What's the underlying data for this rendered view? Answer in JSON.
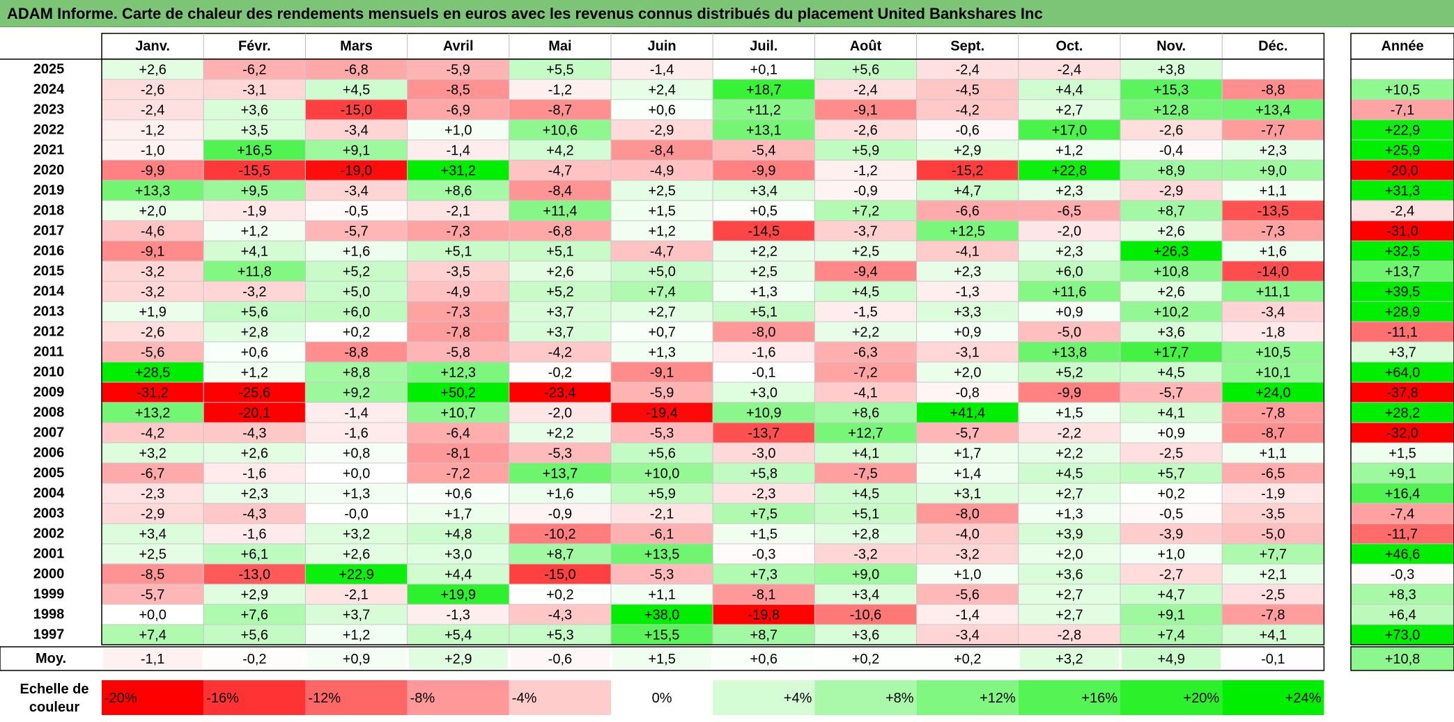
{
  "title": "ADAM Informe. Carte de chaleur des rendements mensuels en euros avec les revenus connus distribués du placement United Bankshares Inc",
  "chart_data": {
    "type": "heatmap",
    "columns": [
      "Janv.",
      "Févr.",
      "Mars",
      "Avril",
      "Mai",
      "Juin",
      "Juil.",
      "Août",
      "Sept.",
      "Oct.",
      "Nov.",
      "Déc."
    ],
    "year_header": "Année",
    "rows": [
      {
        "year": "2025",
        "months": [
          "+2,6",
          "-6,2",
          "-6,8",
          "-5,9",
          "+5,5",
          "-1,4",
          "+0,1",
          "+5,6",
          "-2,4",
          "-2,4",
          "+3,8",
          ""
        ],
        "annual": ""
      },
      {
        "year": "2024",
        "months": [
          "-2,6",
          "-3,1",
          "+4,5",
          "-8,5",
          "-1,2",
          "+2,4",
          "+18,7",
          "-2,4",
          "-4,5",
          "+4,4",
          "+15,3",
          "-8,8"
        ],
        "annual": "+10,5"
      },
      {
        "year": "2023",
        "months": [
          "-2,4",
          "+3,6",
          "-15,0",
          "-6,9",
          "-8,7",
          "+0,6",
          "+11,2",
          "-9,1",
          "-4,2",
          "+2,7",
          "+12,8",
          "+13,4"
        ],
        "annual": "-7,1"
      },
      {
        "year": "2022",
        "months": [
          "-1,2",
          "+3,5",
          "-3,4",
          "+1,0",
          "+10,6",
          "-2,9",
          "+13,1",
          "-2,6",
          "-0,6",
          "+17,0",
          "-2,6",
          "-7,7"
        ],
        "annual": "+22,9"
      },
      {
        "year": "2021",
        "months": [
          "-1,0",
          "+16,5",
          "+9,1",
          "-1,4",
          "+4,2",
          "-8,4",
          "-5,4",
          "+5,9",
          "+2,9",
          "+1,2",
          "-0,4",
          "+2,3"
        ],
        "annual": "+25,9"
      },
      {
        "year": "2020",
        "months": [
          "-9,9",
          "-15,5",
          "-19,0",
          "+31,2",
          "-4,7",
          "-4,9",
          "-9,9",
          "-1,2",
          "-15,2",
          "+22,8",
          "+8,9",
          "+9,0"
        ],
        "annual": "-20,0"
      },
      {
        "year": "2019",
        "months": [
          "+13,3",
          "+9,5",
          "-3,4",
          "+8,6",
          "-8,4",
          "+2,5",
          "+3,4",
          "-0,9",
          "+4,7",
          "+2,3",
          "-2,9",
          "+1,1"
        ],
        "annual": "+31,3"
      },
      {
        "year": "2018",
        "months": [
          "+2,0",
          "-1,9",
          "-0,5",
          "-2,1",
          "+11,4",
          "+1,5",
          "+0,5",
          "+7,2",
          "-6,6",
          "-6,5",
          "+8,7",
          "-13,5"
        ],
        "annual": "-2,4"
      },
      {
        "year": "2017",
        "months": [
          "-4,6",
          "+1,2",
          "-5,7",
          "-7,3",
          "-6,8",
          "+1,2",
          "-14,5",
          "-3,7",
          "+12,5",
          "-2,0",
          "+2,6",
          "-7,3"
        ],
        "annual": "-31,0"
      },
      {
        "year": "2016",
        "months": [
          "-9,1",
          "+4,1",
          "+1,6",
          "+5,1",
          "+5,1",
          "-4,7",
          "+2,2",
          "+2,5",
          "-4,1",
          "+2,3",
          "+26,3",
          "+1,6"
        ],
        "annual": "+32,5"
      },
      {
        "year": "2015",
        "months": [
          "-3,2",
          "+11,8",
          "+5,2",
          "-3,5",
          "+2,6",
          "+5,0",
          "+2,5",
          "-9,4",
          "+2,3",
          "+6,0",
          "+10,8",
          "-14,0"
        ],
        "annual": "+13,7"
      },
      {
        "year": "2014",
        "months": [
          "-3,2",
          "-3,2",
          "+5,0",
          "-4,9",
          "+5,2",
          "+7,4",
          "+1,3",
          "+4,5",
          "-1,3",
          "+11,6",
          "+2,6",
          "+11,1"
        ],
        "annual": "+39,5"
      },
      {
        "year": "2013",
        "months": [
          "+1,9",
          "+5,6",
          "+6,0",
          "-7,3",
          "+3,7",
          "+2,7",
          "+5,1",
          "-1,5",
          "+3,3",
          "+0,9",
          "+10,2",
          "-3,4"
        ],
        "annual": "+28,9"
      },
      {
        "year": "2012",
        "months": [
          "-2,6",
          "+2,8",
          "+0,2",
          "-7,8",
          "+3,7",
          "+0,7",
          "-8,0",
          "+2,2",
          "+0,9",
          "-5,0",
          "+3,6",
          "-1,8"
        ],
        "annual": "-11,1"
      },
      {
        "year": "2011",
        "months": [
          "-5,6",
          "+0,6",
          "-8,8",
          "-5,8",
          "-4,2",
          "+1,3",
          "-1,6",
          "-6,3",
          "-3,1",
          "+13,8",
          "+17,7",
          "+10,5"
        ],
        "annual": "+3,7"
      },
      {
        "year": "2010",
        "months": [
          "+28,5",
          "+1,2",
          "+8,8",
          "+12,3",
          "-0,2",
          "-9,1",
          "-0,1",
          "-7,2",
          "+2,0",
          "+5,2",
          "+4,5",
          "+10,1"
        ],
        "annual": "+64,0"
      },
      {
        "year": "2009",
        "months": [
          "-31,2",
          "-25,6",
          "+9,2",
          "+50,2",
          "-23,4",
          "-5,9",
          "+3,0",
          "-4,1",
          "-0,8",
          "-9,9",
          "-5,7",
          "+24,0"
        ],
        "annual": "-37,8"
      },
      {
        "year": "2008",
        "months": [
          "+13,2",
          "-20,1",
          "-1,4",
          "+10,7",
          "-2,0",
          "-19,4",
          "+10,9",
          "+8,6",
          "+41,4",
          "+1,5",
          "+4,1",
          "-7,8"
        ],
        "annual": "+28,2"
      },
      {
        "year": "2007",
        "months": [
          "-4,2",
          "-4,3",
          "-1,6",
          "-6,4",
          "+2,2",
          "-5,3",
          "-13,7",
          "+12,7",
          "-5,7",
          "-2,2",
          "+0,9",
          "-8,7"
        ],
        "annual": "-32,0"
      },
      {
        "year": "2006",
        "months": [
          "+3,2",
          "+2,6",
          "+0,8",
          "-8,1",
          "-5,3",
          "+5,6",
          "-3,0",
          "+4,1",
          "+1,7",
          "+2,2",
          "-2,5",
          "+1,1"
        ],
        "annual": "+1,5"
      },
      {
        "year": "2005",
        "months": [
          "-6,7",
          "-1,6",
          "+0,0",
          "-7,2",
          "+13,7",
          "+10,0",
          "+5,8",
          "-7,5",
          "+1,4",
          "+4,5",
          "+5,7",
          "-6,5"
        ],
        "annual": "+9,1"
      },
      {
        "year": "2004",
        "months": [
          "-2,3",
          "+2,3",
          "+1,3",
          "+0,6",
          "+1,6",
          "+5,9",
          "-2,3",
          "+4,5",
          "+3,1",
          "+2,7",
          "+0,2",
          "-1,9"
        ],
        "annual": "+16,4"
      },
      {
        "year": "2003",
        "months": [
          "-2,9",
          "-4,3",
          "-0,0",
          "+1,7",
          "-0,9",
          "-2,1",
          "+7,5",
          "+5,1",
          "-8,0",
          "+1,3",
          "-0,5",
          "-3,5"
        ],
        "annual": "-7,4"
      },
      {
        "year": "2002",
        "months": [
          "+3,4",
          "-1,6",
          "+3,2",
          "+4,8",
          "-10,2",
          "-6,1",
          "+1,5",
          "+2,8",
          "-4,0",
          "+3,9",
          "-3,9",
          "-5,0"
        ],
        "annual": "-11,7"
      },
      {
        "year": "2001",
        "months": [
          "+2,5",
          "+6,1",
          "+2,6",
          "+3,0",
          "+8,7",
          "+13,5",
          "-0,3",
          "-3,2",
          "-3,2",
          "+2,0",
          "+1,0",
          "+7,7"
        ],
        "annual": "+46,6"
      },
      {
        "year": "2000",
        "months": [
          "-8,5",
          "-13,0",
          "+22,9",
          "+4,4",
          "-15,0",
          "-5,3",
          "+7,3",
          "+9,0",
          "+1,0",
          "+3,6",
          "-2,7",
          "+2,1"
        ],
        "annual": "-0,3"
      },
      {
        "year": "1999",
        "months": [
          "-5,7",
          "+2,9",
          "-2,1",
          "+19,9",
          "+0,2",
          "+1,1",
          "-8,1",
          "+3,4",
          "-5,6",
          "+2,7",
          "+4,7",
          "-2,5"
        ],
        "annual": "+8,3"
      },
      {
        "year": "1998",
        "months": [
          "+0,0",
          "+7,6",
          "+3,7",
          "-1,3",
          "-4,3",
          "+38,0",
          "-19,8",
          "-10,6",
          "-1,4",
          "+2,7",
          "+9,1",
          "-7,8"
        ],
        "annual": "+6,4"
      },
      {
        "year": "1997",
        "months": [
          "+7,4",
          "+5,6",
          "+1,2",
          "+5,4",
          "+5,3",
          "+15,5",
          "+8,7",
          "+3,6",
          "-3,4",
          "-2,8",
          "+7,4",
          "+4,1"
        ],
        "annual": "+73,0"
      }
    ],
    "average": {
      "label": "Moy.",
      "months": [
        "-1,1",
        "-0,2",
        "+0,9",
        "+2,9",
        "-0,6",
        "+1,5",
        "+0,6",
        "+0,2",
        "+0,2",
        "+3,2",
        "+4,9",
        "-0,1"
      ],
      "annual": "+10,8"
    },
    "scale": {
      "label_line1": "Echelle de",
      "label_line2": "couleur",
      "steps": [
        "-20%",
        "-16%",
        "-12%",
        "-8%",
        "-4%",
        "0%",
        "+4%",
        "+8%",
        "+12%",
        "+16%",
        "+20%",
        "+24%"
      ]
    },
    "colors": {
      "negative": "#ff0000",
      "positive": "#00ee00",
      "neutral": "#ffffff",
      "title_bg": "#7cc576"
    }
  }
}
